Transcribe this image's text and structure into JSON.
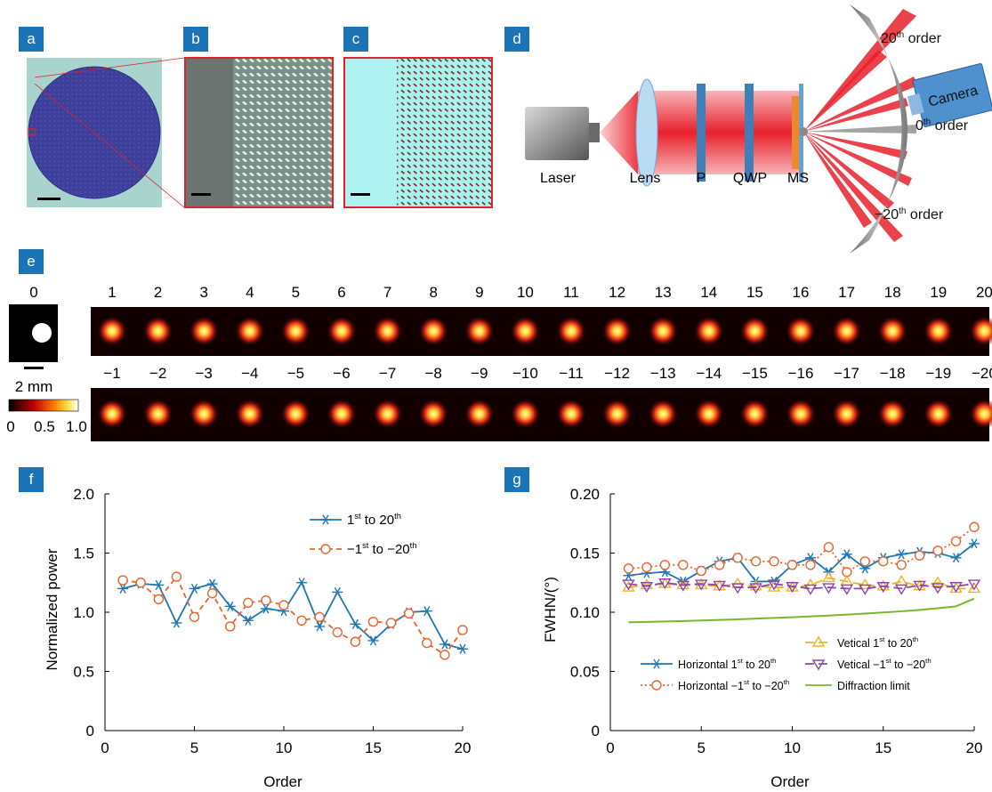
{
  "panel_labels": {
    "a": "a",
    "b": "b",
    "c": "c",
    "d": "d",
    "e": "e",
    "f": "f",
    "g": "g"
  },
  "setup": {
    "laser": "Laser",
    "lens": "Lens",
    "p": "P",
    "qwp": "QWP",
    "ms": "MS",
    "camera": "Camera",
    "order_top": "20",
    "order_top_sup": "th",
    "order_top_suffix": " order",
    "order_mid": "0",
    "order_mid_sup": "th",
    "order_mid_suffix": " order",
    "order_bot": "−20",
    "order_bot_sup": "th",
    "order_bot_suffix": " order"
  },
  "spots": {
    "zero_label": "0",
    "scale_label": "2 mm",
    "colorbar_ticks": [
      "0",
      "0.5",
      "1.0"
    ],
    "top_labels": [
      "1",
      "2",
      "3",
      "4",
      "5",
      "6",
      "7",
      "8",
      "9",
      "10",
      "11",
      "12",
      "13",
      "14",
      "15",
      "16",
      "17",
      "18",
      "19",
      "20"
    ],
    "bottom_labels": [
      "−1",
      "−2",
      "−3",
      "−4",
      "−5",
      "−6",
      "−7",
      "−8",
      "−9",
      "−10",
      "−11",
      "−12",
      "−13",
      "−14",
      "−15",
      "−16",
      "−17",
      "−18",
      "−19",
      "−20"
    ]
  },
  "chart_data": [
    {
      "type": "line",
      "ylabel": "Normalized power",
      "xlabel": "Order",
      "xlim": [
        0,
        20
      ],
      "ylim": [
        0,
        2.0
      ],
      "xticks": [
        0,
        5,
        10,
        15,
        20
      ],
      "xtick_labels": [
        "0",
        "5",
        "10",
        "15",
        "20"
      ],
      "yticks": [
        0,
        0.5,
        1.0,
        1.5,
        2.0
      ],
      "ytick_labels": [
        "0",
        "0.5",
        "1.0",
        "1.5",
        "2.0"
      ],
      "legend_placement": "top-right",
      "x": [
        1,
        2,
        3,
        4,
        5,
        6,
        7,
        8,
        9,
        10,
        11,
        12,
        13,
        14,
        15,
        16,
        17,
        18,
        19,
        20
      ],
      "series": [
        {
          "name": "1st to 20th",
          "legend_main": "1",
          "legend_sup": "st",
          "legend_mid": " to 20",
          "legend_sup2": "th",
          "color": "#1f77b4",
          "marker": "star",
          "dash": "",
          "values": [
            1.2,
            1.24,
            1.23,
            0.91,
            1.2,
            1.24,
            1.05,
            0.93,
            1.03,
            1.01,
            1.25,
            0.88,
            1.17,
            0.9,
            0.76,
            0.9,
            1.0,
            1.01,
            0.73,
            0.69
          ]
        },
        {
          "name": "−1st to −20th",
          "legend_main": "−1",
          "legend_sup": "st",
          "legend_mid": " to −20",
          "legend_sup2": "th",
          "color": "#e8642c",
          "marker": "circle",
          "dash": "6,4",
          "values": [
            1.27,
            1.25,
            1.11,
            1.3,
            0.96,
            1.16,
            0.88,
            1.08,
            1.1,
            1.06,
            0.93,
            0.96,
            0.83,
            0.75,
            0.92,
            0.91,
            0.99,
            0.74,
            0.64,
            0.85
          ]
        }
      ]
    },
    {
      "type": "line",
      "ylabel": "FWHN/(°)",
      "xlabel": "Order",
      "xlim": [
        0,
        20
      ],
      "ylim": [
        0,
        0.2
      ],
      "xticks": [
        0,
        5,
        10,
        15,
        20
      ],
      "xtick_labels": [
        "0",
        "5",
        "10",
        "15",
        "20"
      ],
      "yticks": [
        0,
        0.05,
        0.1,
        0.15,
        0.2
      ],
      "ytick_labels": [
        "0",
        "0.05",
        "0.10",
        "0.15",
        "0.20"
      ],
      "legend_placement": "lower-center",
      "x": [
        1,
        2,
        3,
        4,
        5,
        6,
        7,
        8,
        9,
        10,
        11,
        12,
        13,
        14,
        15,
        16,
        17,
        18,
        19,
        20
      ],
      "series": [
        {
          "name": "Horizontal 1st to 20th",
          "legend_main": "Horizontal 1",
          "legend_sup": "st",
          "legend_mid": " to 20",
          "legend_sup2": "th",
          "color": "#1f77b4",
          "marker": "star",
          "dash": "",
          "values": [
            0.131,
            0.133,
            0.134,
            0.126,
            0.135,
            0.143,
            0.146,
            0.126,
            0.126,
            0.14,
            0.146,
            0.134,
            0.149,
            0.137,
            0.146,
            0.149,
            0.151,
            0.15,
            0.146,
            0.158
          ]
        },
        {
          "name": "Horizontal −1st to −20th",
          "legend_main": "Horizontal −1",
          "legend_sup": "st",
          "legend_mid": " to −20",
          "legend_sup2": "th",
          "color": "#e8642c",
          "marker": "circle",
          "dash": "2,3",
          "values": [
            0.137,
            0.138,
            0.14,
            0.14,
            0.135,
            0.14,
            0.146,
            0.143,
            0.143,
            0.14,
            0.14,
            0.155,
            0.134,
            0.143,
            0.143,
            0.14,
            0.148,
            0.152,
            0.16,
            0.172
          ]
        },
        {
          "name": "Vetical 1st to 20th",
          "legend_main": "Vetical 1",
          "legend_sup": "st",
          "legend_mid": " to 20",
          "legend_sup2": "th",
          "color": "#f0b323",
          "marker": "triangle",
          "dash": "10,5",
          "values": [
            0.121,
            0.123,
            0.124,
            0.123,
            0.123,
            0.122,
            0.124,
            0.122,
            0.121,
            0.121,
            0.123,
            0.129,
            0.126,
            0.123,
            0.122,
            0.126,
            0.122,
            0.125,
            0.12,
            0.12
          ]
        },
        {
          "name": "Vetical −1st to −20th",
          "legend_main": "Vetical −1",
          "legend_sup": "st",
          "legend_mid": " to −20",
          "legend_sup2": "th",
          "color": "#8e44ad",
          "marker": "triangle-down",
          "dash": "10,5",
          "values": [
            0.124,
            0.122,
            0.125,
            0.123,
            0.124,
            0.123,
            0.121,
            0.121,
            0.124,
            0.122,
            0.12,
            0.121,
            0.12,
            0.12,
            0.122,
            0.12,
            0.123,
            0.121,
            0.122,
            0.124
          ]
        },
        {
          "name": "Diffraction limit",
          "legend_main": "Diffraction limit",
          "legend_sup": "",
          "legend_mid": "",
          "legend_sup2": "",
          "color": "#76b82a",
          "marker": "none",
          "dash": "",
          "values": [
            0.0915,
            0.0918,
            0.0922,
            0.0926,
            0.093,
            0.0935,
            0.094,
            0.0946,
            0.0952,
            0.0958,
            0.0965,
            0.0972,
            0.098,
            0.0989,
            0.0998,
            0.1008,
            0.102,
            0.1034,
            0.105,
            0.1115
          ]
        }
      ]
    }
  ]
}
